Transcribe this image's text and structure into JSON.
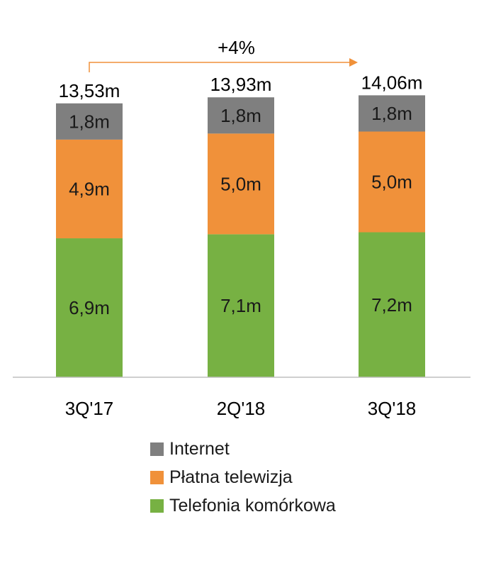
{
  "chart_data": {
    "type": "bar",
    "stacked": true,
    "categories": [
      "3Q'17",
      "2Q'18",
      "3Q'18"
    ],
    "series": [
      {
        "name": "Telefonia komórkowa",
        "color": "#77b143",
        "values": [
          6.9,
          7.1,
          7.2
        ],
        "labels": [
          "6,9m",
          "7,1m",
          "7,2m"
        ]
      },
      {
        "name": "Płatna telewizja",
        "color": "#f0913a",
        "values": [
          4.9,
          5.0,
          5.0
        ],
        "labels": [
          "4,9m",
          "5,0m",
          "5,0m"
        ]
      },
      {
        "name": "Internet",
        "color": "#7f7f7f",
        "values": [
          1.8,
          1.8,
          1.8
        ],
        "labels": [
          "1,8m",
          "1,8m",
          "1,8m"
        ]
      }
    ],
    "totals": [
      13.53,
      13.93,
      14.06
    ],
    "total_labels": [
      "13,53m",
      "13,93m",
      "14,06m"
    ],
    "annotation": {
      "text": "+4%",
      "from": "3Q'17",
      "to": "3Q'18",
      "color": "#f0913a"
    },
    "ylim": [
      0,
      15
    ],
    "legend": "bottom-center",
    "grid": false,
    "title": "",
    "xlabel": "",
    "ylabel": ""
  },
  "legend_items": [
    {
      "label": "Internet",
      "color": "#7f7f7f"
    },
    {
      "label": "Płatna telewizja",
      "color": "#f0913a"
    },
    {
      "label": "Telefonia komórkowa",
      "color": "#77b143"
    }
  ]
}
